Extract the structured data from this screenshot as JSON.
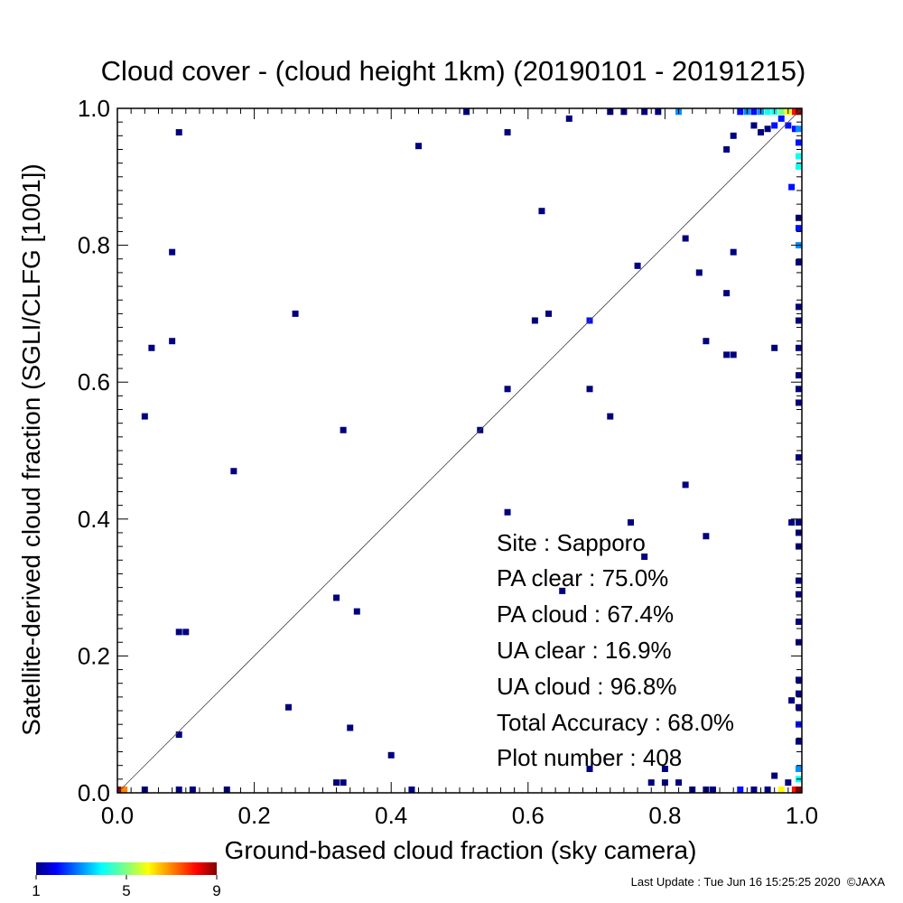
{
  "chart_data": {
    "type": "heatmap",
    "title": "Cloud cover - (cloud height 1km)  (20190101 - 20191215)",
    "xlabel": "Ground-based cloud fraction (sky camera)",
    "ylabel": "Satellite-derived cloud fraction (SGLI/CLFG [1001])",
    "xlim": [
      0,
      1
    ],
    "ylim": [
      0,
      1
    ],
    "xticks": [
      "0.0",
      "0.2",
      "0.4",
      "0.6",
      "0.8",
      "1.0"
    ],
    "yticks": [
      "0.0",
      "0.2",
      "0.4",
      "0.6",
      "0.8",
      "1.0"
    ],
    "grid": false,
    "reference_line": "y = x",
    "colorbar": {
      "min": 1,
      "max": 9,
      "ticks": [
        "1",
        "5",
        "9"
      ],
      "colormap": "jet",
      "placement": "bottom-left"
    },
    "points": [
      [
        0.0,
        0.0,
        9
      ],
      [
        0.01,
        0.0,
        7
      ],
      [
        0.04,
        0.0,
        1
      ],
      [
        0.09,
        0.0,
        1
      ],
      [
        0.11,
        0.0,
        1
      ],
      [
        0.16,
        0.0,
        1
      ],
      [
        0.32,
        0.015,
        1
      ],
      [
        0.33,
        0.015,
        1
      ],
      [
        0.43,
        0.0,
        1
      ],
      [
        0.4,
        0.055,
        1
      ],
      [
        0.34,
        0.095,
        1
      ],
      [
        0.25,
        0.125,
        1
      ],
      [
        0.09,
        0.085,
        1
      ],
      [
        0.09,
        0.235,
        1
      ],
      [
        0.1,
        0.235,
        1
      ],
      [
        0.32,
        0.285,
        1
      ],
      [
        0.35,
        0.265,
        1
      ],
      [
        0.04,
        0.55,
        1
      ],
      [
        0.17,
        0.47,
        1
      ],
      [
        0.33,
        0.53,
        1
      ],
      [
        0.53,
        0.53,
        1
      ],
      [
        0.57,
        0.59,
        1
      ],
      [
        0.57,
        0.41,
        1
      ],
      [
        0.05,
        0.65,
        1
      ],
      [
        0.08,
        0.66,
        1
      ],
      [
        0.26,
        0.7,
        1
      ],
      [
        0.08,
        0.79,
        1
      ],
      [
        0.09,
        0.965,
        1
      ],
      [
        0.44,
        0.945,
        1
      ],
      [
        0.51,
        0.995,
        1
      ],
      [
        0.57,
        0.965,
        1
      ],
      [
        0.62,
        0.85,
        1
      ],
      [
        0.66,
        0.985,
        1
      ],
      [
        0.61,
        0.69,
        1
      ],
      [
        0.63,
        0.7,
        1
      ],
      [
        0.69,
        0.69,
        2
      ],
      [
        0.69,
        0.59,
        1
      ],
      [
        0.72,
        0.55,
        1
      ],
      [
        0.76,
        0.77,
        1
      ],
      [
        0.72,
        0.995,
        1
      ],
      [
        0.74,
        0.995,
        1
      ],
      [
        0.77,
        0.995,
        1
      ],
      [
        0.79,
        0.995,
        1
      ],
      [
        0.82,
        0.995,
        3
      ],
      [
        0.83,
        0.81,
        1
      ],
      [
        0.85,
        0.76,
        1
      ],
      [
        0.83,
        0.45,
        1
      ],
      [
        0.86,
        0.66,
        1
      ],
      [
        0.89,
        0.73,
        1
      ],
      [
        0.9,
        0.79,
        1
      ],
      [
        0.89,
        0.64,
        1
      ],
      [
        0.9,
        0.64,
        1
      ],
      [
        0.9,
        0.96,
        1
      ],
      [
        0.89,
        0.94,
        1
      ],
      [
        0.96,
        0.65,
        1
      ],
      [
        0.75,
        0.395,
        1
      ],
      [
        0.77,
        0.345,
        1
      ],
      [
        0.86,
        0.375,
        1
      ],
      [
        0.65,
        0.295,
        1
      ],
      [
        0.69,
        0.035,
        1
      ],
      [
        0.78,
        0.015,
        1
      ],
      [
        0.8,
        0.035,
        1
      ],
      [
        0.8,
        0.015,
        1
      ],
      [
        0.82,
        0.015,
        1
      ],
      [
        0.84,
        0.0,
        1
      ],
      [
        0.86,
        0.0,
        1
      ],
      [
        0.87,
        0.0,
        1
      ],
      [
        0.91,
        0.0,
        2
      ],
      [
        0.93,
        0.0,
        1
      ],
      [
        0.95,
        0.0,
        1
      ],
      [
        0.96,
        0.025,
        1
      ],
      [
        0.97,
        0.0,
        6
      ],
      [
        0.98,
        0.015,
        1
      ],
      [
        0.99,
        0.0,
        8
      ],
      [
        1.0,
        0.0,
        9
      ],
      [
        0.91,
        0.995,
        2
      ],
      [
        0.92,
        0.995,
        3
      ],
      [
        0.93,
        0.995,
        2
      ],
      [
        0.94,
        0.995,
        3
      ],
      [
        0.95,
        0.995,
        4
      ],
      [
        0.96,
        0.995,
        4
      ],
      [
        0.97,
        0.995,
        5
      ],
      [
        0.98,
        0.995,
        6
      ],
      [
        0.99,
        0.995,
        8
      ],
      [
        1.0,
        0.995,
        9
      ],
      [
        0.93,
        0.975,
        1
      ],
      [
        0.94,
        0.965,
        1
      ],
      [
        0.95,
        0.97,
        1
      ],
      [
        0.96,
        0.975,
        2
      ],
      [
        0.97,
        0.985,
        2
      ],
      [
        0.98,
        0.975,
        2
      ],
      [
        0.99,
        0.97,
        2
      ],
      [
        1.0,
        0.97,
        3
      ],
      [
        0.985,
        0.395,
        1
      ],
      [
        0.985,
        0.135,
        1
      ],
      [
        0.985,
        0.885,
        2
      ],
      [
        1.0,
        0.95,
        2
      ],
      [
        1.0,
        0.93,
        4
      ],
      [
        1.0,
        0.915,
        4
      ],
      [
        1.0,
        0.84,
        1
      ],
      [
        1.0,
        0.825,
        2
      ],
      [
        1.0,
        0.8,
        3
      ],
      [
        1.0,
        0.775,
        1
      ],
      [
        1.0,
        0.71,
        1
      ],
      [
        1.0,
        0.69,
        1
      ],
      [
        1.0,
        0.65,
        1
      ],
      [
        1.0,
        0.61,
        1
      ],
      [
        1.0,
        0.59,
        1
      ],
      [
        1.0,
        0.57,
        1
      ],
      [
        1.0,
        0.49,
        1
      ],
      [
        1.0,
        0.395,
        1
      ],
      [
        1.0,
        0.38,
        1
      ],
      [
        1.0,
        0.36,
        1
      ],
      [
        1.0,
        0.31,
        1
      ],
      [
        1.0,
        0.29,
        1
      ],
      [
        1.0,
        0.25,
        1
      ],
      [
        1.0,
        0.22,
        1
      ],
      [
        1.0,
        0.165,
        1
      ],
      [
        1.0,
        0.145,
        1
      ],
      [
        1.0,
        0.125,
        1
      ],
      [
        1.0,
        0.1,
        2
      ],
      [
        1.0,
        0.075,
        1
      ],
      [
        1.0,
        0.035,
        3
      ],
      [
        1.0,
        0.02,
        4
      ]
    ]
  },
  "stats": {
    "site": "Site : Sapporo",
    "pa_clear": "PA clear :  75.0%",
    "pa_cloud": "PA cloud :  67.4%",
    "ua_clear": "UA clear :  16.9%",
    "ua_cloud": "UA cloud :  96.8%",
    "total_accuracy": "Total Accuracy :  68.0%",
    "plot_number": "Plot number :       408"
  },
  "footer": "Last Update : Tue Jun 16 15:25:25 2020  ©JAXA"
}
